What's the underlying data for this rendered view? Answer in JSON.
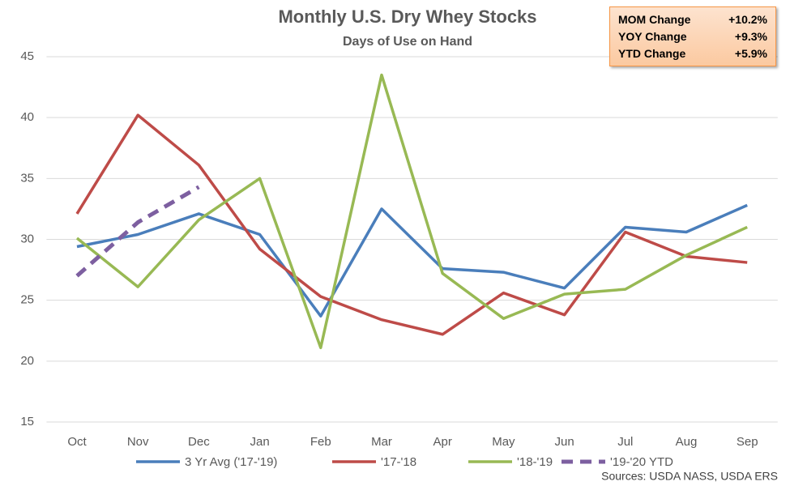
{
  "chart_data": {
    "type": "line",
    "title": "Monthly U.S. Dry Whey Stocks",
    "subtitle": "Days of Use on Hand",
    "categories": [
      "Oct",
      "Nov",
      "Dec",
      "Jan",
      "Feb",
      "Mar",
      "Apr",
      "May",
      "Jun",
      "Jul",
      "Aug",
      "Sep"
    ],
    "series": [
      {
        "name": "3 Yr Avg ('17-'19)",
        "color": "#4a7ebb",
        "values": [
          29.4,
          30.4,
          32.1,
          30.4,
          23.7,
          32.5,
          27.6,
          27.3,
          26.0,
          31.0,
          30.6,
          32.8
        ]
      },
      {
        "name": "'17-'18",
        "color": "#be4b48",
        "values": [
          32.1,
          40.2,
          36.1,
          29.2,
          25.3,
          23.4,
          22.2,
          25.6,
          23.8,
          30.6,
          28.6,
          28.1
        ]
      },
      {
        "name": "'18-'19",
        "color": "#98b954",
        "values": [
          30.1,
          26.1,
          31.6,
          35.0,
          21.1,
          43.5,
          27.2,
          23.5,
          25.5,
          25.9,
          28.7,
          31.0
        ]
      },
      {
        "name": "'19-'20 YTD",
        "color": "#7d5fa0",
        "dashed": true,
        "values": [
          27.0,
          31.4,
          34.3,
          null,
          null,
          null,
          null,
          null,
          null,
          null,
          null,
          null
        ]
      }
    ],
    "ylim": [
      15,
      45
    ],
    "yticks": [
      15,
      20,
      25,
      30,
      35,
      40,
      45
    ],
    "grid": true,
    "legend": "bottom",
    "stats": [
      [
        "MOM Change",
        "+10.2%"
      ],
      [
        "YOY Change",
        "+9.3%"
      ],
      [
        "YTD Change",
        "+5.9%"
      ]
    ],
    "source": "Sources: USDA NASS, USDA ERS"
  }
}
